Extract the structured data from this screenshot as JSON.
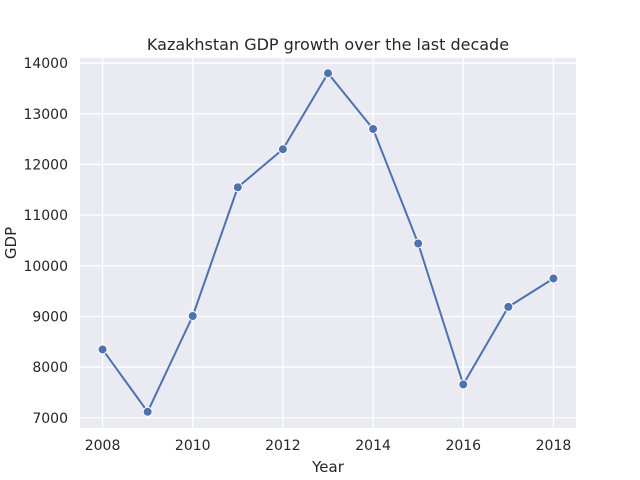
{
  "chart_data": {
    "type": "line",
    "title": "Kazakhstan GDP growth over the last decade",
    "xlabel": "Year",
    "ylabel": "GDP",
    "x": [
      2008,
      2009,
      2010,
      2011,
      2012,
      2013,
      2014,
      2015,
      2016,
      2017,
      2018
    ],
    "series": [
      {
        "values": [
          8350,
          7120,
          9010,
          11550,
          12300,
          13800,
          12700,
          10440,
          7660,
          9190,
          9750
        ]
      }
    ],
    "xlim": [
      2007.5,
      2018.5
    ],
    "ylim": [
      6800,
      14100
    ],
    "xticks": [
      2008,
      2010,
      2012,
      2014,
      2016,
      2018
    ],
    "yticks": [
      7000,
      8000,
      9000,
      10000,
      11000,
      12000,
      13000,
      14000
    ],
    "grid": true,
    "legend": "none",
    "colors": {
      "background": "#eaeaf2",
      "line": "#4c72b0",
      "grid": "#ffffff"
    }
  }
}
